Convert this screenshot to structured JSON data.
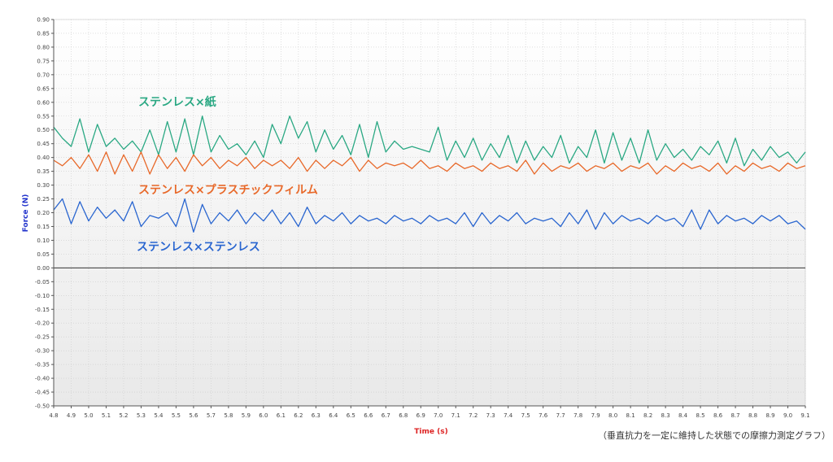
{
  "chart_data": {
    "type": "line",
    "xlabel": "Time (s)",
    "ylabel": "Force (N)",
    "xlim": [
      4.8,
      9.1
    ],
    "ylim": [
      -0.5,
      0.9
    ],
    "xticks": [
      "4.8",
      "4.9",
      "5.0",
      "5.1",
      "5.2",
      "5.3",
      "5.4",
      "5.5",
      "5.6",
      "5.7",
      "5.8",
      "5.9",
      "6.0",
      "6.1",
      "6.2",
      "6.3",
      "6.4",
      "6.5",
      "6.6",
      "6.7",
      "6.8",
      "6.9",
      "7.0",
      "7.1",
      "7.2",
      "7.3",
      "7.4",
      "7.5",
      "7.6",
      "7.7",
      "7.8",
      "7.9",
      "8.0",
      "8.1",
      "8.2",
      "8.3",
      "8.4",
      "8.5",
      "8.6",
      "8.7",
      "8.8",
      "8.9",
      "9.0",
      "9.1"
    ],
    "yticks": [
      "0.90",
      "0.85",
      "0.80",
      "0.75",
      "0.70",
      "0.65",
      "0.60",
      "0.55",
      "0.50",
      "0.45",
      "0.40",
      "0.35",
      "0.30",
      "0.25",
      "0.20",
      "0.15",
      "0.10",
      "0.05",
      "0.00",
      "-0.05",
      "-0.10",
      "-0.15",
      "-0.20",
      "-0.25",
      "-0.30",
      "-0.35",
      "-0.40",
      "-0.45",
      "-0.50"
    ],
    "grid": true,
    "x": [
      4.8,
      4.85,
      4.9,
      4.95,
      5.0,
      5.05,
      5.1,
      5.15,
      5.2,
      5.25,
      5.3,
      5.35,
      5.4,
      5.45,
      5.5,
      5.55,
      5.6,
      5.65,
      5.7,
      5.75,
      5.8,
      5.85,
      5.9,
      5.95,
      6.0,
      6.05,
      6.1,
      6.15,
      6.2,
      6.25,
      6.3,
      6.35,
      6.4,
      6.45,
      6.5,
      6.55,
      6.6,
      6.65,
      6.7,
      6.75,
      6.8,
      6.85,
      6.9,
      6.95,
      7.0,
      7.05,
      7.1,
      7.15,
      7.2,
      7.25,
      7.3,
      7.35,
      7.4,
      7.45,
      7.5,
      7.55,
      7.6,
      7.65,
      7.7,
      7.75,
      7.8,
      7.85,
      7.9,
      7.95,
      8.0,
      8.05,
      8.1,
      8.15,
      8.2,
      8.25,
      8.3,
      8.35,
      8.4,
      8.45,
      8.5,
      8.55,
      8.6,
      8.65,
      8.7,
      8.75,
      8.8,
      8.85,
      8.9,
      8.95,
      9.0,
      9.05,
      9.1
    ],
    "series": [
      {
        "name": "ステンレス×紙",
        "color": "#2aa883",
        "values": [
          0.51,
          0.47,
          0.44,
          0.54,
          0.42,
          0.52,
          0.44,
          0.47,
          0.43,
          0.46,
          0.42,
          0.5,
          0.41,
          0.53,
          0.42,
          0.54,
          0.41,
          0.55,
          0.42,
          0.48,
          0.43,
          0.45,
          0.41,
          0.46,
          0.4,
          0.52,
          0.45,
          0.55,
          0.47,
          0.53,
          0.42,
          0.5,
          0.43,
          0.48,
          0.41,
          0.52,
          0.4,
          0.53,
          0.42,
          0.46,
          0.43,
          0.44,
          0.43,
          0.42,
          0.51,
          0.39,
          0.46,
          0.4,
          0.47,
          0.39,
          0.45,
          0.4,
          0.48,
          0.38,
          0.46,
          0.39,
          0.44,
          0.4,
          0.48,
          0.38,
          0.44,
          0.4,
          0.5,
          0.38,
          0.49,
          0.39,
          0.47,
          0.38,
          0.5,
          0.39,
          0.45,
          0.4,
          0.43,
          0.39,
          0.44,
          0.41,
          0.46,
          0.38,
          0.47,
          0.37,
          0.43,
          0.39,
          0.44,
          0.4,
          0.42,
          0.38,
          0.42
        ]
      },
      {
        "name": "ステンレス×プラスチックフィルム",
        "color": "#e8692a",
        "values": [
          0.39,
          0.37,
          0.4,
          0.36,
          0.41,
          0.35,
          0.42,
          0.34,
          0.41,
          0.35,
          0.42,
          0.34,
          0.41,
          0.36,
          0.4,
          0.35,
          0.41,
          0.37,
          0.4,
          0.36,
          0.39,
          0.37,
          0.4,
          0.36,
          0.39,
          0.37,
          0.39,
          0.36,
          0.4,
          0.35,
          0.39,
          0.36,
          0.39,
          0.37,
          0.4,
          0.35,
          0.39,
          0.36,
          0.38,
          0.37,
          0.38,
          0.36,
          0.39,
          0.36,
          0.37,
          0.35,
          0.38,
          0.36,
          0.37,
          0.35,
          0.38,
          0.36,
          0.37,
          0.35,
          0.39,
          0.34,
          0.38,
          0.35,
          0.37,
          0.36,
          0.38,
          0.35,
          0.37,
          0.36,
          0.38,
          0.35,
          0.37,
          0.36,
          0.38,
          0.34,
          0.37,
          0.35,
          0.38,
          0.36,
          0.37,
          0.35,
          0.38,
          0.34,
          0.37,
          0.35,
          0.38,
          0.36,
          0.37,
          0.35,
          0.38,
          0.36,
          0.37
        ]
      },
      {
        "name": "ステンレス×ステンレス",
        "color": "#2a66d0",
        "values": [
          0.21,
          0.25,
          0.16,
          0.24,
          0.17,
          0.22,
          0.18,
          0.21,
          0.17,
          0.24,
          0.15,
          0.19,
          0.18,
          0.2,
          0.15,
          0.25,
          0.13,
          0.23,
          0.16,
          0.2,
          0.17,
          0.21,
          0.16,
          0.2,
          0.17,
          0.21,
          0.16,
          0.2,
          0.15,
          0.22,
          0.16,
          0.19,
          0.17,
          0.2,
          0.16,
          0.19,
          0.17,
          0.18,
          0.16,
          0.19,
          0.17,
          0.18,
          0.16,
          0.19,
          0.17,
          0.18,
          0.16,
          0.2,
          0.15,
          0.2,
          0.16,
          0.19,
          0.17,
          0.2,
          0.16,
          0.18,
          0.17,
          0.18,
          0.15,
          0.2,
          0.16,
          0.21,
          0.14,
          0.2,
          0.16,
          0.19,
          0.17,
          0.18,
          0.16,
          0.19,
          0.17,
          0.18,
          0.15,
          0.21,
          0.14,
          0.21,
          0.16,
          0.19,
          0.17,
          0.18,
          0.16,
          0.19,
          0.17,
          0.19,
          0.16,
          0.17,
          0.14
        ]
      }
    ]
  },
  "caption": "（垂直抗力を一定に維持した状態での摩擦力測定グラフ）"
}
